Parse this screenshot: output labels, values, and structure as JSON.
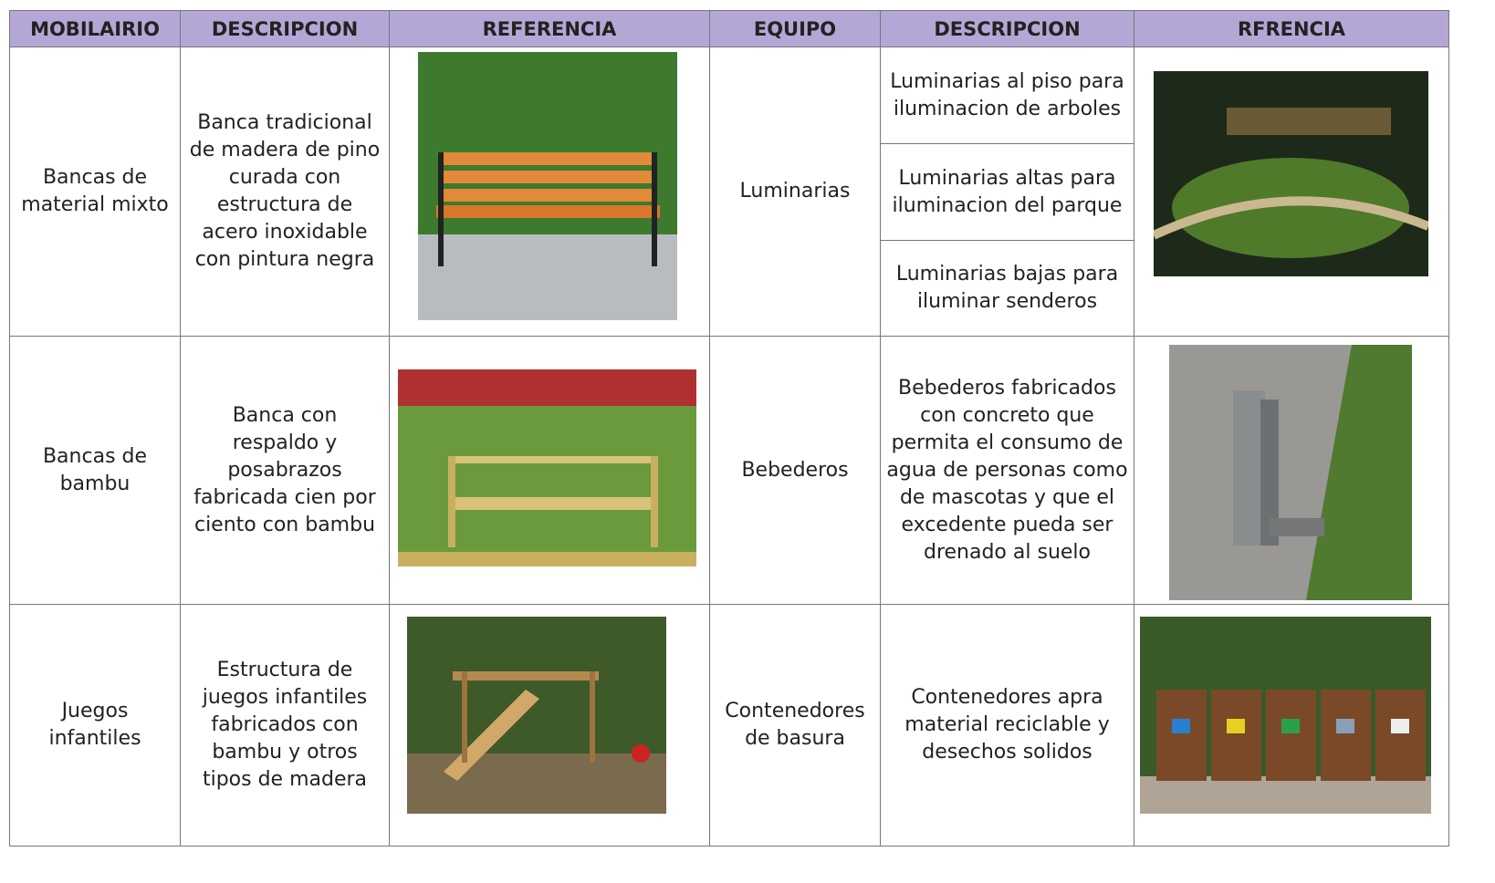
{
  "headers": [
    "MOBILAIRIO",
    "DESCRIPCION",
    "REFERENCIA",
    "EQUIPO",
    "DESCRIPCION",
    "RFRENCIA"
  ],
  "rows": [
    {
      "mobiliario": "Bancas de material mixto",
      "descripcion": "Banca tradicional de madera  de pino curada con estructura de acero inoxidable con pintura negra",
      "equipo": "Luminarias",
      "equipo_descripcion": [
        "Luminarias al piso para iluminacion de arboles",
        "Luminarias altas para iluminacion del parque",
        "Luminarias bajas para iluminar senderos"
      ]
    },
    {
      "mobiliario": "Bancas de bambu",
      "descripcion": "Banca con respaldo y posabrazos fabricada cien por ciento con bambu",
      "equipo": "Bebederos",
      "equipo_descripcion": [
        "Bebederos fabricados con concreto que permita el consumo de agua de personas como de mascotas y que el excedente pueda ser drenado al suelo"
      ]
    },
    {
      "mobiliario": "Juegos infantiles",
      "descripcion": "Estructura de juegos infantiles fabricados con bambu y otros tipos de madera",
      "equipo": "Contenedores de basura",
      "equipo_descripcion": [
        "Contenedores apra material reciclable y desechos solidos"
      ]
    }
  ]
}
